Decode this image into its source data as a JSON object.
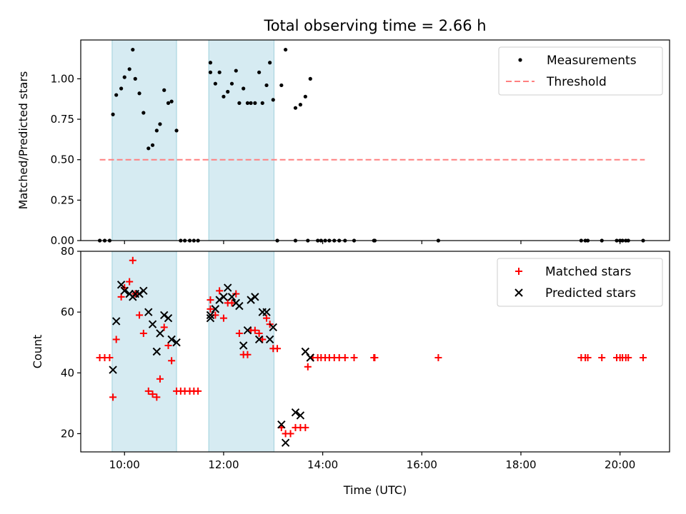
{
  "chart_data": [
    {
      "type": "scatter",
      "title": "Total observing time = 2.66 h",
      "ylabel": "Matched/Predicted stars",
      "xlabel": "",
      "xlim": [
        "09:07",
        "21:00"
      ],
      "ylim": [
        0,
        1.24
      ],
      "yticks": [
        "0.00",
        "0.25",
        "0.50",
        "0.75",
        "1.00"
      ],
      "xticks": [
        "10:00",
        "12:00",
        "14:00",
        "16:00",
        "18:00",
        "20:00"
      ],
      "legend_position": "top-right",
      "shaded_intervals": [
        [
          "09:45",
          "11:03"
        ],
        [
          "11:42",
          "13:01"
        ]
      ],
      "threshold": {
        "name": "Threshold",
        "value": 0.5,
        "x_start": "09:30",
        "x_end": "20:30",
        "color": "#ff8080"
      },
      "series": [
        {
          "name": "Measurements",
          "color": "#000000",
          "points": [
            [
              "09:30",
              0
            ],
            [
              "09:36",
              0
            ],
            [
              "09:42",
              0
            ],
            [
              "09:46",
              0.78
            ],
            [
              "09:50",
              0.9
            ],
            [
              "09:56",
              0.94
            ],
            [
              "10:00",
              1.01
            ],
            [
              "10:06",
              1.06
            ],
            [
              "10:10",
              1.18
            ],
            [
              "10:13",
              1.0
            ],
            [
              "10:18",
              0.91
            ],
            [
              "10:23",
              0.79
            ],
            [
              "10:29",
              0.57
            ],
            [
              "10:34",
              0.59
            ],
            [
              "10:39",
              0.68
            ],
            [
              "10:43",
              0.72
            ],
            [
              "10:48",
              0.93
            ],
            [
              "10:53",
              0.85
            ],
            [
              "10:57",
              0.86
            ],
            [
              "11:03",
              0.68
            ],
            [
              "11:08",
              0
            ],
            [
              "11:13",
              0
            ],
            [
              "11:19",
              0
            ],
            [
              "11:24",
              0
            ],
            [
              "11:29",
              0
            ],
            [
              "11:44",
              1.1
            ],
            [
              "11:44",
              1.04
            ],
            [
              "11:50",
              0.97
            ],
            [
              "11:55",
              1.04
            ],
            [
              "12:00",
              0.89
            ],
            [
              "12:05",
              0.92
            ],
            [
              "12:10",
              0.97
            ],
            [
              "12:15",
              1.05
            ],
            [
              "12:19",
              0.85
            ],
            [
              "12:24",
              0.94
            ],
            [
              "12:29",
              0.85
            ],
            [
              "12:33",
              0.85
            ],
            [
              "12:38",
              0.85
            ],
            [
              "12:43",
              1.04
            ],
            [
              "12:47",
              0.85
            ],
            [
              "12:52",
              0.96
            ],
            [
              "12:56",
              1.1
            ],
            [
              "13:00",
              0.87
            ],
            [
              "13:10",
              0.96
            ],
            [
              "13:15",
              1.18
            ],
            [
              "13:27",
              0.82
            ],
            [
              "13:33",
              0.84
            ],
            [
              "13:39",
              0.89
            ],
            [
              "13:45",
              1.0
            ],
            [
              "13:05",
              0
            ],
            [
              "13:27",
              0
            ],
            [
              "13:42",
              0
            ],
            [
              "13:54",
              0
            ],
            [
              "13:58",
              0
            ],
            [
              "14:03",
              0
            ],
            [
              "14:08",
              0
            ],
            [
              "14:14",
              0
            ],
            [
              "14:20",
              0
            ],
            [
              "14:27",
              0
            ],
            [
              "14:38",
              0
            ],
            [
              "15:02",
              0
            ],
            [
              "15:03",
              0
            ],
            [
              "16:20",
              0
            ],
            [
              "19:13",
              0
            ],
            [
              "19:18",
              0
            ],
            [
              "19:21",
              0
            ],
            [
              "19:38",
              0
            ],
            [
              "19:56",
              0
            ],
            [
              "20:00",
              0
            ],
            [
              "20:03",
              0
            ],
            [
              "20:07",
              0
            ],
            [
              "20:10",
              0
            ],
            [
              "20:28",
              0
            ]
          ]
        }
      ]
    },
    {
      "type": "scatter",
      "title": "",
      "ylabel": "Count",
      "xlabel": "Time (UTC)",
      "xlim": [
        "09:07",
        "21:00"
      ],
      "ylim": [
        14,
        80
      ],
      "yticks": [
        "20",
        "40",
        "60",
        "80"
      ],
      "xticks": [
        "10:00",
        "12:00",
        "14:00",
        "16:00",
        "18:00",
        "20:00"
      ],
      "legend_position": "top-right",
      "shaded_intervals": [
        [
          "09:45",
          "11:03"
        ],
        [
          "11:42",
          "13:01"
        ]
      ],
      "series": [
        {
          "name": "Matched stars",
          "color": "#ff0000",
          "marker": "plus",
          "points": [
            [
              "09:30",
              45
            ],
            [
              "09:36",
              45
            ],
            [
              "09:42",
              45
            ],
            [
              "09:46",
              32
            ],
            [
              "09:50",
              51
            ],
            [
              "09:56",
              65
            ],
            [
              "10:00",
              68
            ],
            [
              "10:06",
              70
            ],
            [
              "10:10",
              77
            ],
            [
              "10:13",
              66
            ],
            [
              "10:18",
              59
            ],
            [
              "10:23",
              53
            ],
            [
              "10:29",
              34
            ],
            [
              "10:34",
              33
            ],
            [
              "10:39",
              32
            ],
            [
              "10:43",
              38
            ],
            [
              "10:48",
              55
            ],
            [
              "10:53",
              49
            ],
            [
              "10:57",
              44
            ],
            [
              "11:03",
              34
            ],
            [
              "11:08",
              34
            ],
            [
              "11:13",
              34
            ],
            [
              "11:19",
              34
            ],
            [
              "11:24",
              34
            ],
            [
              "11:29",
              34
            ],
            [
              "11:44",
              64
            ],
            [
              "11:44",
              61
            ],
            [
              "11:50",
              59
            ],
            [
              "11:55",
              67
            ],
            [
              "12:00",
              58
            ],
            [
              "12:05",
              63
            ],
            [
              "12:10",
              63
            ],
            [
              "12:15",
              66
            ],
            [
              "12:19",
              53
            ],
            [
              "12:24",
              46
            ],
            [
              "12:29",
              46
            ],
            [
              "12:33",
              54
            ],
            [
              "12:38",
              54
            ],
            [
              "12:43",
              53
            ],
            [
              "12:47",
              51
            ],
            [
              "12:52",
              58
            ],
            [
              "12:56",
              56
            ],
            [
              "13:00",
              48
            ],
            [
              "13:05",
              48
            ],
            [
              "13:10",
              22
            ],
            [
              "13:15",
              20
            ],
            [
              "13:21",
              20
            ],
            [
              "13:27",
              22
            ],
            [
              "13:33",
              22
            ],
            [
              "13:39",
              22
            ],
            [
              "13:42",
              42
            ],
            [
              "13:48",
              45
            ],
            [
              "13:54",
              45
            ],
            [
              "13:58",
              45
            ],
            [
              "14:03",
              45
            ],
            [
              "14:08",
              45
            ],
            [
              "14:14",
              45
            ],
            [
              "14:20",
              45
            ],
            [
              "14:27",
              45
            ],
            [
              "14:38",
              45
            ],
            [
              "15:02",
              45
            ],
            [
              "15:03",
              45
            ],
            [
              "16:20",
              45
            ],
            [
              "19:13",
              45
            ],
            [
              "19:18",
              45
            ],
            [
              "19:21",
              45
            ],
            [
              "19:38",
              45
            ],
            [
              "19:56",
              45
            ],
            [
              "20:00",
              45
            ],
            [
              "20:03",
              45
            ],
            [
              "20:07",
              45
            ],
            [
              "20:10",
              45
            ],
            [
              "20:28",
              45
            ]
          ]
        },
        {
          "name": "Predicted stars",
          "color": "#000000",
          "marker": "x",
          "points": [
            [
              "09:46",
              41
            ],
            [
              "09:50",
              57
            ],
            [
              "09:56",
              69
            ],
            [
              "10:00",
              67
            ],
            [
              "10:06",
              66
            ],
            [
              "10:10",
              65
            ],
            [
              "10:13",
              66
            ],
            [
              "10:18",
              66
            ],
            [
              "10:23",
              67
            ],
            [
              "10:29",
              60
            ],
            [
              "10:34",
              56
            ],
            [
              "10:39",
              47
            ],
            [
              "10:43",
              53
            ],
            [
              "10:48",
              59
            ],
            [
              "10:53",
              58
            ],
            [
              "10:57",
              51
            ],
            [
              "11:03",
              50
            ],
            [
              "11:44",
              58
            ],
            [
              "11:44",
              59
            ],
            [
              "11:50",
              61
            ],
            [
              "11:55",
              64
            ],
            [
              "12:00",
              65
            ],
            [
              "12:05",
              68
            ],
            [
              "12:10",
              65
            ],
            [
              "12:15",
              63
            ],
            [
              "12:19",
              62
            ],
            [
              "12:24",
              49
            ],
            [
              "12:29",
              54
            ],
            [
              "12:33",
              64
            ],
            [
              "12:38",
              65
            ],
            [
              "12:43",
              51
            ],
            [
              "12:47",
              60
            ],
            [
              "12:52",
              60
            ],
            [
              "12:56",
              51
            ],
            [
              "13:00",
              55
            ],
            [
              "13:10",
              23
            ],
            [
              "13:15",
              17
            ],
            [
              "13:27",
              27
            ],
            [
              "13:33",
              26
            ],
            [
              "13:39",
              47
            ],
            [
              "13:45",
              45
            ]
          ]
        }
      ]
    }
  ]
}
